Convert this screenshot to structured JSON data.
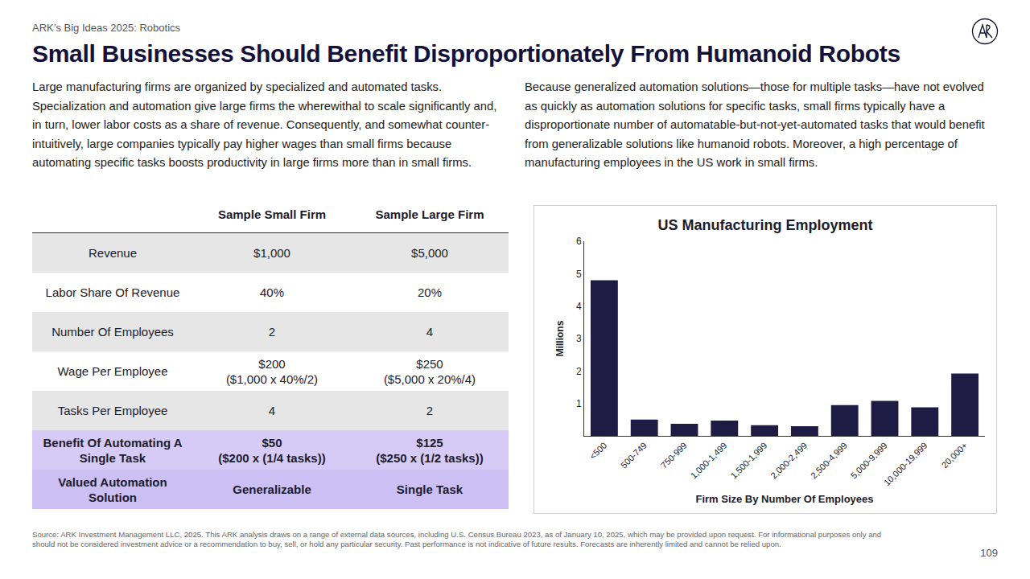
{
  "header": {
    "kicker": "ARK’s Big Ideas 2025: Robotics",
    "title": "Small Businesses Should Benefit Disproportionately From Humanoid Robots"
  },
  "paragraphs": [
    "Large manufacturing firms are organized by specialized and automated tasks. Specialization and automation give large firms the wherewithal to scale significantly and, in turn, lower labor costs as a share of revenue. Consequently, and somewhat counter-intuitively, large companies typically pay higher wages than small firms because automating specific tasks boosts productivity in large firms more than in small firms.",
    "Because generalized automation solutions—those for multiple tasks—have not evolved as quickly as automation solutions for specific tasks, small firms typically have a disproportionate number of automatable-but-not-yet-automated tasks that would benefit from generalizable solutions like humanoid robots. Moreover, a high percentage of manufacturing employees in the US work in small firms."
  ],
  "table": {
    "columns": [
      "",
      "Sample Small Firm",
      "Sample Large Firm"
    ],
    "rows": [
      [
        [
          "Revenue"
        ],
        [
          "$1,000"
        ],
        [
          "$5,000"
        ]
      ],
      [
        [
          "Labor Share Of Revenue"
        ],
        [
          "40%"
        ],
        [
          "20%"
        ]
      ],
      [
        [
          "Number Of Employees"
        ],
        [
          "2"
        ],
        [
          "4"
        ]
      ],
      [
        [
          "Wage Per Employee"
        ],
        [
          "$200",
          "($1,000 x 40%/2)"
        ],
        [
          "$250",
          "($5,000 x 20%/4)"
        ]
      ],
      [
        [
          "Tasks Per Employee"
        ],
        [
          "4"
        ],
        [
          "2"
        ]
      ],
      [
        [
          "Benefit Of Automating A Single Task"
        ],
        [
          "$50",
          "($200 x (1/4 tasks))"
        ],
        [
          "$125",
          "($250 x (1/2 tasks))"
        ]
      ],
      [
        [
          "Valued Automation Solution"
        ],
        [
          "Generalizable"
        ],
        [
          "Single Task"
        ]
      ]
    ]
  },
  "chart_data": {
    "type": "bar",
    "title": "US Manufacturing Employment",
    "x_label": "Firm Size By Number Of Employees",
    "y_label": "Millions",
    "categories": [
      "<500",
      "500-749",
      "750-999",
      "1,000-1,499",
      "1,500-1,999",
      "2,000-2,499",
      "2,500-4,999",
      "5,000-9,999",
      "10,000-19,999",
      "20,000+"
    ],
    "values": [
      4.8,
      0.5,
      0.37,
      0.47,
      0.33,
      0.3,
      0.95,
      1.08,
      0.88,
      1.92
    ],
    "color": "#1e1b45",
    "ylim": [
      0,
      6
    ],
    "yticks": [
      1,
      2,
      3,
      4,
      5,
      6
    ],
    "grid": false
  },
  "footer": {
    "source": "Source: ARK Investment Management LLC, 2025. This ARK analysis draws on a range of external data sources, including U.S. Census Bureau 2023, as of January 10, 2025, which may be provided upon request. For informational purposes only and should not be considered investment advice or a recommendation to buy, sell, or hold any particular security. Past performance is not indicative of future results. Forecasts are inherently limited and cannot be relied upon.",
    "page": "109"
  }
}
